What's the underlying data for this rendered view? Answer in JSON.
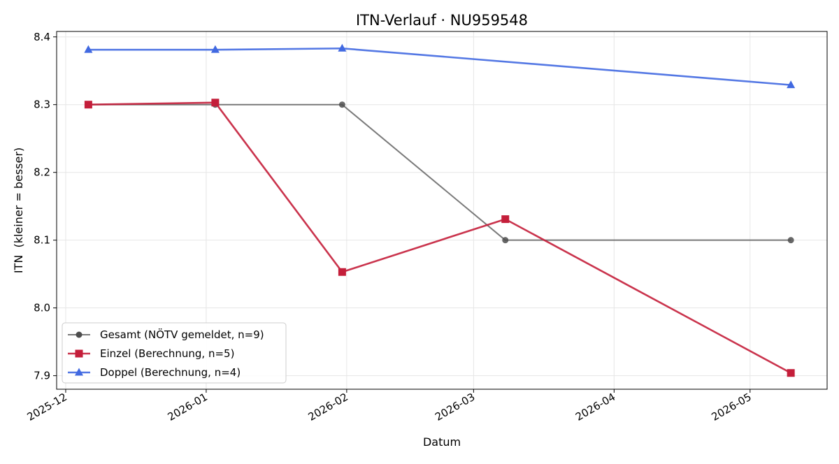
{
  "chart_data": {
    "type": "line",
    "title": "ITN-Verlauf · NU959548",
    "xlabel": "Datum",
    "ylabel": "ITN  (kleiner = besser)",
    "x_type": "date",
    "xlim": [
      "2025-11-29",
      "2026-05-18"
    ],
    "ylim": [
      7.88,
      8.408
    ],
    "grid": true,
    "legend_position": "lower-left",
    "x_ticks": [
      {
        "value": "2025-12-01",
        "label": "2025-12"
      },
      {
        "value": "2026-01-01",
        "label": "2026-01"
      },
      {
        "value": "2026-02-01",
        "label": "2026-02"
      },
      {
        "value": "2026-03-01",
        "label": "2026-03"
      },
      {
        "value": "2026-04-01",
        "label": "2026-04"
      },
      {
        "value": "2026-05-01",
        "label": "2026-05"
      }
    ],
    "y_ticks": [
      {
        "value": 7.9,
        "label": "7.9"
      },
      {
        "value": 8.0,
        "label": "8.0"
      },
      {
        "value": 8.1,
        "label": "8.1"
      },
      {
        "value": 8.2,
        "label": "8.2"
      },
      {
        "value": 8.3,
        "label": "8.3"
      },
      {
        "value": 8.4,
        "label": "8.4"
      }
    ],
    "series": [
      {
        "name": "Gesamt (NÖTV gemeldet, n=9)",
        "color": "#4d4d4d",
        "marker": "circle",
        "points": [
          {
            "x": "2025-12-06",
            "y": 8.3
          },
          {
            "x": "2026-01-03",
            "y": 8.3
          },
          {
            "x": "2026-01-31",
            "y": 8.3
          },
          {
            "x": "2026-03-08",
            "y": 8.1
          },
          {
            "x": "2026-05-10",
            "y": 8.1
          }
        ]
      },
      {
        "name": "Einzel (Berechnung, n=5)",
        "color": "#c41e3a",
        "marker": "square",
        "points": [
          {
            "x": "2025-12-06",
            "y": 8.3
          },
          {
            "x": "2026-01-03",
            "y": 8.303
          },
          {
            "x": "2026-01-31",
            "y": 8.053
          },
          {
            "x": "2026-03-08",
            "y": 8.131
          },
          {
            "x": "2026-05-10",
            "y": 7.904
          }
        ]
      },
      {
        "name": "Doppel (Berechnung, n=4)",
        "color": "#4169e1",
        "marker": "triangle",
        "points": [
          {
            "x": "2025-12-06",
            "y": 8.381
          },
          {
            "x": "2026-01-03",
            "y": 8.381
          },
          {
            "x": "2026-01-31",
            "y": 8.383
          },
          {
            "x": "2026-05-10",
            "y": 8.329
          }
        ]
      }
    ]
  }
}
